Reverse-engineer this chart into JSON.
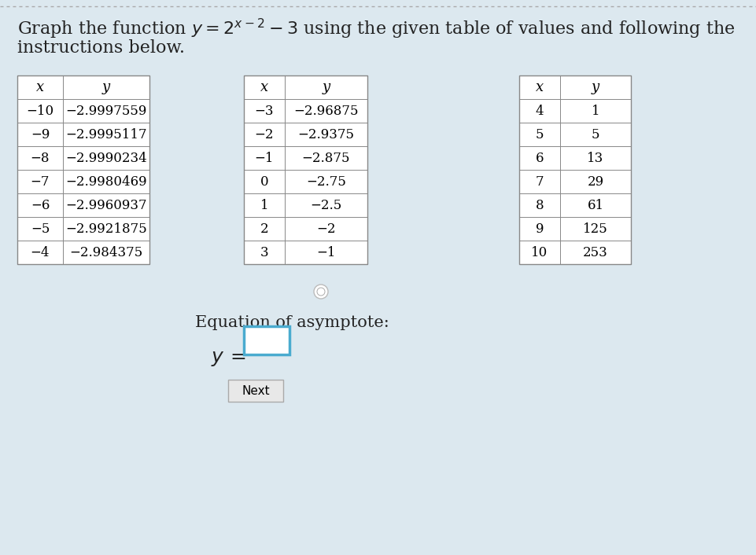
{
  "title_line1": "Graph the function $y = 2^{x-2} - 3$ using the given table of values and following the",
  "title_line2": "instructions below.",
  "table1": {
    "headers": [
      "x",
      "y"
    ],
    "rows": [
      [
        "−10",
        "−2.9997559"
      ],
      [
        "−9",
        "−2.9995117"
      ],
      [
        "−8",
        "−2.9990234"
      ],
      [
        "−7",
        "−2.9980469"
      ],
      [
        "−6",
        "−2.9960937"
      ],
      [
        "−5",
        "−2.9921875"
      ],
      [
        "−4",
        "−2.984375"
      ]
    ]
  },
  "table2": {
    "headers": [
      "x",
      "y"
    ],
    "rows": [
      [
        "−3",
        "−2.96875"
      ],
      [
        "−2",
        "−2.9375"
      ],
      [
        "−1",
        "−2.875"
      ],
      [
        "0",
        "−2.75"
      ],
      [
        "1",
        "−2.5"
      ],
      [
        "2",
        "−2"
      ],
      [
        "3",
        "−1"
      ]
    ]
  },
  "table3": {
    "headers": [
      "x",
      "y"
    ],
    "rows": [
      [
        "4",
        "1"
      ],
      [
        "5",
        "5"
      ],
      [
        "6",
        "13"
      ],
      [
        "7",
        "29"
      ],
      [
        "8",
        "61"
      ],
      [
        "9",
        "125"
      ],
      [
        "10",
        "253"
      ]
    ]
  },
  "asymptote_label": "Equation of asymptote:",
  "y_equals": "y =",
  "next_button": "Next",
  "bg_color": "#dce8ef",
  "table_border_color": "#888888",
  "header_font_size": 13,
  "body_font_size": 12,
  "title_font_size": 16,
  "input_box_color": "#4aabcf",
  "next_btn_border": "#aaaaaa",
  "next_btn_bg": "#e8e8e8"
}
